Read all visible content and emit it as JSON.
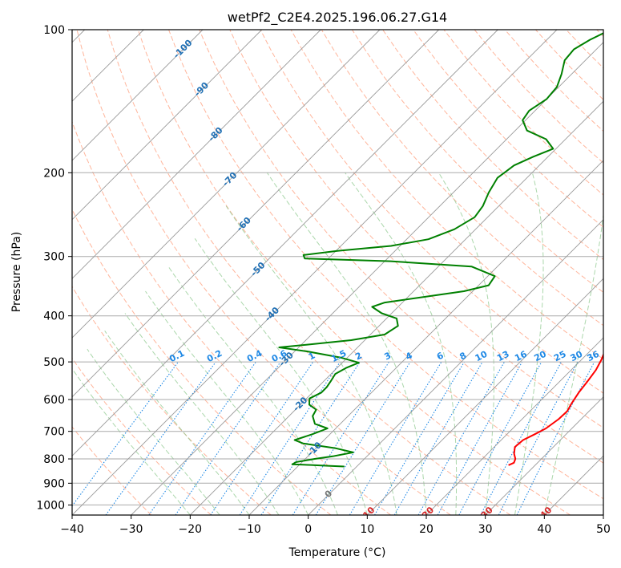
{
  "chart_data": {
    "type": "line",
    "title": "wetPf2_C2E4.2025.196.06.27.G14",
    "xlabel": "Temperature (°C)",
    "ylabel": "Pressure (hPa)",
    "xlim": [
      -40,
      50
    ],
    "ylim": [
      1050,
      100
    ],
    "y_scale": "log",
    "x_ticks": [
      -40,
      -30,
      -20,
      -10,
      0,
      10,
      20,
      30,
      40,
      50
    ],
    "y_ticks": [
      100,
      200,
      300,
      400,
      500,
      600,
      700,
      800,
      900,
      1000
    ],
    "grid": true,
    "legend": "none",
    "skew_projection": true,
    "series": [
      {
        "color": "#ff0000",
        "points": [
          [
            25.5,
            825
          ],
          [
            26.0,
            815
          ],
          [
            25.6,
            800
          ],
          [
            24.5,
            780
          ],
          [
            23.5,
            755
          ],
          [
            23.7,
            730
          ],
          [
            24.7,
            710
          ],
          [
            25.6,
            690
          ],
          [
            26.2,
            660
          ],
          [
            26.3,
            635
          ],
          [
            25.7,
            610
          ],
          [
            25.1,
            580
          ],
          [
            24.7,
            550
          ],
          [
            24.2,
            520
          ],
          [
            23.4,
            495
          ],
          [
            22.3,
            470
          ],
          [
            20.7,
            450
          ],
          [
            19.1,
            430
          ],
          [
            18.1,
            415
          ],
          [
            17.0,
            400
          ],
          [
            15.3,
            380
          ],
          [
            13.0,
            360
          ],
          [
            10.8,
            340
          ],
          [
            9.2,
            320
          ],
          [
            8.3,
            305
          ],
          [
            7.5,
            290
          ],
          [
            5.9,
            276
          ],
          [
            4.6,
            265
          ],
          [
            3.3,
            254
          ],
          [
            2.0,
            240
          ],
          [
            0.2,
            225
          ],
          [
            -1.8,
            210
          ],
          [
            -3.9,
            195
          ],
          [
            -6.0,
            180
          ],
          [
            -7.9,
            165
          ],
          [
            -10.1,
            150
          ],
          [
            -12.0,
            138
          ],
          [
            -14.0,
            126
          ],
          [
            -16.3,
            117
          ],
          [
            -18.5,
            112
          ],
          [
            -20.0,
            109
          ],
          [
            -21.0,
            106
          ],
          [
            -19.7,
            104
          ],
          [
            -18.0,
            101
          ]
        ]
      },
      {
        "color": "#008000",
        "points": [
          [
            -2.1,
            830
          ],
          [
            -5.0,
            827
          ],
          [
            -8.0,
            824
          ],
          [
            -11.3,
            821
          ],
          [
            -11.0,
            812
          ],
          [
            -8.4,
            800
          ],
          [
            -5.8,
            790
          ],
          [
            -3.0,
            775
          ],
          [
            -6.6,
            760
          ],
          [
            -13.0,
            742
          ],
          [
            -15.0,
            730
          ],
          [
            -13.0,
            710
          ],
          [
            -11.4,
            690
          ],
          [
            -14.3,
            675
          ],
          [
            -16.0,
            650
          ],
          [
            -16.5,
            630
          ],
          [
            -18.5,
            615
          ],
          [
            -19.5,
            597
          ],
          [
            -18.5,
            580
          ],
          [
            -18.5,
            565
          ],
          [
            -18.8,
            550
          ],
          [
            -19.3,
            530
          ],
          [
            -18.5,
            515
          ],
          [
            -17.2,
            502
          ],
          [
            -21.0,
            490
          ],
          [
            -28.0,
            475
          ],
          [
            -33.3,
            466
          ],
          [
            -29.0,
            460
          ],
          [
            -22.3,
            450
          ],
          [
            -17.6,
            438
          ],
          [
            -16.8,
            420
          ],
          [
            -18.3,
            405
          ],
          [
            -21.7,
            395
          ],
          [
            -24.4,
            383
          ],
          [
            -23.0,
            375
          ],
          [
            -17.3,
            365
          ],
          [
            -11.5,
            355
          ],
          [
            -8.3,
            345
          ],
          [
            -8.8,
            330
          ],
          [
            -14.4,
            315
          ],
          [
            -29.0,
            307
          ],
          [
            -44.0,
            303
          ],
          [
            -44.8,
            298
          ],
          [
            -39.8,
            292
          ],
          [
            -31.5,
            285
          ],
          [
            -26.3,
            276
          ],
          [
            -23.6,
            263
          ],
          [
            -22.2,
            248
          ],
          [
            -22.7,
            235
          ],
          [
            -24.0,
            220
          ],
          [
            -25.0,
            205
          ],
          [
            -24.3,
            193
          ],
          [
            -22.5,
            185
          ],
          [
            -20.5,
            178
          ],
          [
            -23.3,
            170
          ],
          [
            -28.0,
            163
          ],
          [
            -30.5,
            155
          ],
          [
            -31.0,
            148
          ],
          [
            -30.0,
            140
          ],
          [
            -30.3,
            132
          ],
          [
            -31.7,
            124
          ],
          [
            -33.5,
            116
          ],
          [
            -33.8,
            110
          ],
          [
            -32.7,
            105
          ],
          [
            -31.3,
            101
          ]
        ]
      }
    ],
    "isotherm_labels": [
      "-100",
      "-90",
      "-80",
      "-70",
      "-60",
      "-50",
      "-40",
      "-30",
      "-20",
      "-10",
      "0",
      "10",
      "20",
      "30",
      "40"
    ],
    "isotherm_values": [
      -100,
      -90,
      -80,
      -70,
      -60,
      -50,
      -40,
      -30,
      -20,
      -10,
      0,
      10,
      20,
      30,
      40
    ],
    "mixing_ratio_labels": [
      "0.1",
      "0.2",
      "0.4",
      "0.6",
      "1",
      "1.5",
      "2",
      "3",
      "4",
      "6",
      "8",
      "10",
      "13",
      "16",
      "20",
      "25",
      "30",
      "36"
    ],
    "mixing_ratio_values": [
      0.1,
      0.2,
      0.4,
      0.6,
      1,
      1.5,
      2,
      3,
      4,
      6,
      8,
      10,
      13,
      16,
      20,
      25,
      30,
      36
    ],
    "colors": {
      "temperature": "#ff0000",
      "dewpoint": "#008000",
      "isotherm_grid": "#999999",
      "pressure_grid": "#aaaaaa",
      "dry_adiabat": "#ff9c7a",
      "moist_adiabat": "#8fc98f",
      "mixing_ratio": "#1e88e5",
      "isotherm_label_cold": "#1f6fb4",
      "isotherm_label_warm": "#d62728",
      "isotherm_label_zero": "#777777"
    }
  }
}
